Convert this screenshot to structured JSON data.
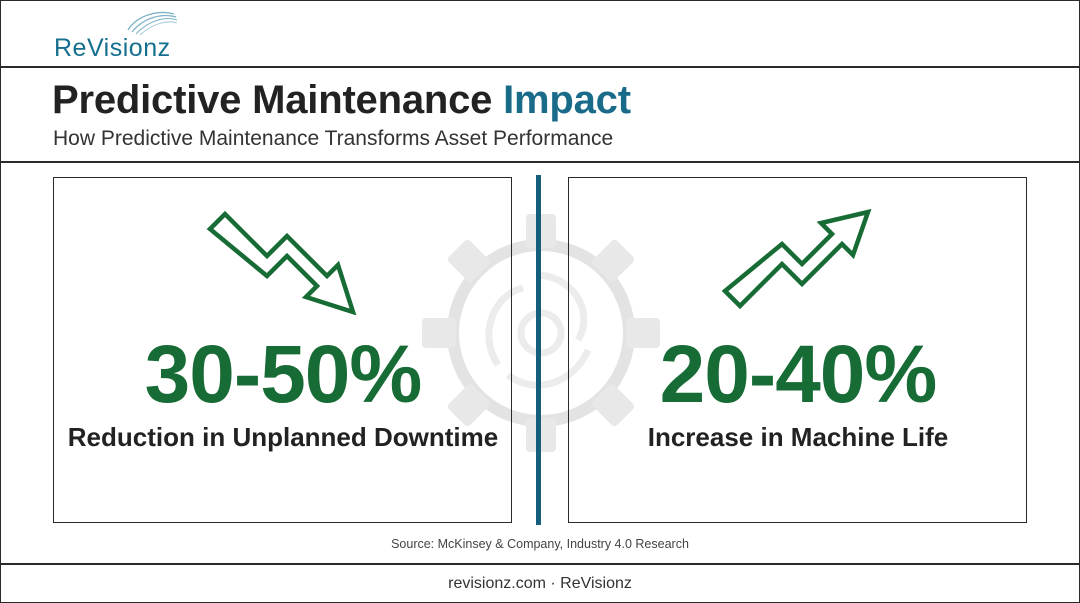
{
  "brand": {
    "logo_text": "ReVisionz",
    "accent_color": "#1a6b8a"
  },
  "header": {
    "title_main": "Predictive Maintenance ",
    "title_accent": "Impact",
    "subtitle": "How Predictive Maintenance Transforms Asset Performance"
  },
  "stats": [
    {
      "value": "30-50%",
      "label": "Reduction in Unplanned Downtime",
      "icon": "trend-down-arrow-icon"
    },
    {
      "value": "20-40%",
      "label": "Increase in Machine Life",
      "icon": "trend-up-arrow-icon"
    }
  ],
  "colors": {
    "stat_green": "#176b35",
    "divider": "#145f7c",
    "text": "#222222"
  },
  "source": "Source: McKinsey & Company, Industry 4.0 Research",
  "footer": "revisionz.com · ReVisionz"
}
